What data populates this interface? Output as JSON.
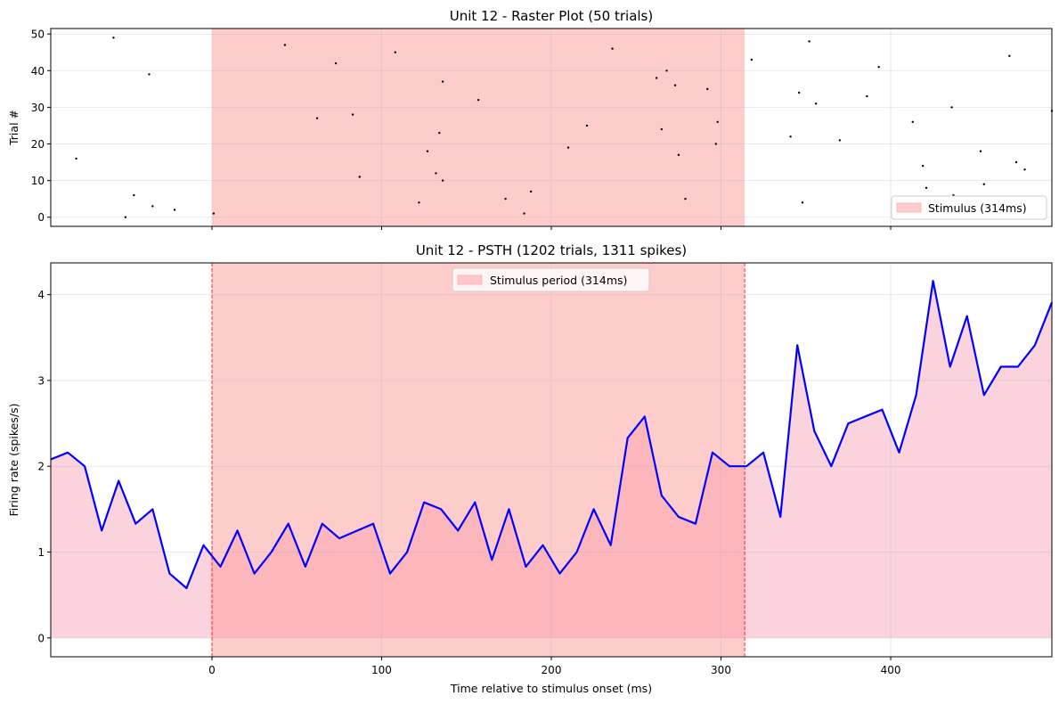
{
  "chart_data": [
    {
      "type": "scatter",
      "title": "Unit 12 - Raster Plot (50 trials)",
      "xlabel": "",
      "ylabel": "Trial #",
      "xlim": [
        -95,
        495
      ],
      "ylim": [
        -2.5,
        51.5
      ],
      "xticks": [
        0,
        100,
        200,
        300,
        400
      ],
      "yticks": [
        0,
        10,
        20,
        30,
        40,
        50
      ],
      "grid": true,
      "stimulus_span": [
        0,
        314
      ],
      "legend": {
        "position": "lower-right",
        "entries": [
          "Stimulus (314ms)"
        ]
      },
      "colors": {
        "stimulus": "#ff9999",
        "spikes": "#000000"
      },
      "series": [
        {
          "points": [
            [
              -80,
              16
            ],
            [
              -58,
              49
            ],
            [
              -51,
              0
            ],
            [
              -46,
              6
            ],
            [
              -37,
              39
            ],
            [
              -35,
              3
            ],
            [
              -22,
              2
            ],
            [
              1,
              1
            ],
            [
              43,
              47
            ],
            [
              62,
              27
            ],
            [
              73,
              42
            ],
            [
              83,
              28
            ],
            [
              87,
              11
            ],
            [
              108,
              45
            ],
            [
              122,
              4
            ],
            [
              127,
              18
            ],
            [
              132,
              12
            ],
            [
              134,
              23
            ],
            [
              136,
              10
            ],
            [
              136,
              37
            ],
            [
              157,
              32
            ],
            [
              173,
              5
            ],
            [
              184,
              1
            ],
            [
              188,
              7
            ],
            [
              210,
              19
            ],
            [
              221,
              25
            ],
            [
              236,
              46
            ],
            [
              262,
              38
            ],
            [
              265,
              24
            ],
            [
              268,
              40
            ],
            [
              273,
              36
            ],
            [
              275,
              17
            ],
            [
              279,
              5
            ],
            [
              292,
              35
            ],
            [
              297,
              20
            ],
            [
              298,
              26
            ],
            [
              318,
              43
            ],
            [
              341,
              22
            ],
            [
              346,
              34
            ],
            [
              348,
              4
            ],
            [
              352,
              48
            ],
            [
              356,
              31
            ],
            [
              370,
              21
            ],
            [
              386,
              33
            ],
            [
              393,
              41
            ],
            [
              413,
              26
            ],
            [
              419,
              14
            ],
            [
              421,
              8
            ],
            [
              436,
              30
            ],
            [
              437,
              6
            ],
            [
              453,
              18
            ],
            [
              455,
              9
            ],
            [
              470,
              44
            ],
            [
              474,
              15
            ],
            [
              479,
              13
            ],
            [
              495,
              29
            ]
          ]
        }
      ]
    },
    {
      "type": "area",
      "title": "Unit 12 - PSTH (1202 trials, 1311 spikes)",
      "xlabel": "Time relative to stimulus onset (ms)",
      "ylabel": "Firing rate (spikes/s)",
      "xlim": [
        -95,
        495
      ],
      "ylim": [
        -0.22,
        4.37
      ],
      "xticks": [
        0,
        100,
        200,
        300,
        400
      ],
      "yticks": [
        0,
        1,
        2,
        3,
        4
      ],
      "grid": true,
      "stimulus_span": [
        0,
        314
      ],
      "legend": {
        "position": "upper-center",
        "entries": [
          "Stimulus period (314ms)"
        ]
      },
      "colors": {
        "line": "#0000ff",
        "fill": "#f7b5c5",
        "stimulus": "#ff9999",
        "marker": "#ff0000"
      },
      "series": [
        {
          "x": [
            -95,
            -85,
            -75,
            -65,
            -55,
            -45,
            -35,
            -25,
            -15,
            -5,
            5,
            15,
            25,
            35,
            45,
            55,
            65,
            75,
            95,
            105,
            115,
            125,
            135,
            145,
            155,
            165,
            175,
            185,
            195,
            205,
            215,
            225,
            235,
            245,
            255,
            265,
            275,
            285,
            295,
            305,
            315,
            325,
            335,
            345,
            355,
            365,
            375,
            395,
            405,
            415,
            425,
            435,
            445,
            455,
            465,
            475,
            485,
            495
          ],
          "values": [
            2.08,
            2.16,
            2.0,
            1.25,
            1.83,
            1.33,
            1.5,
            0.75,
            0.58,
            1.08,
            0.83,
            1.25,
            0.75,
            1.0,
            1.33,
            0.83,
            1.33,
            1.16,
            1.33,
            0.75,
            1.0,
            1.58,
            1.5,
            1.25,
            1.58,
            0.91,
            1.5,
            0.83,
            1.08,
            0.75,
            1.0,
            1.5,
            1.08,
            2.33,
            2.58,
            1.66,
            1.41,
            1.33,
            2.16,
            2.0,
            2.0,
            2.16,
            1.41,
            3.41,
            2.41,
            2.0,
            2.5,
            2.66,
            2.16,
            2.83,
            4.16,
            3.16,
            3.75,
            2.83,
            3.16,
            3.16,
            3.41,
            3.91
          ]
        }
      ]
    }
  ]
}
